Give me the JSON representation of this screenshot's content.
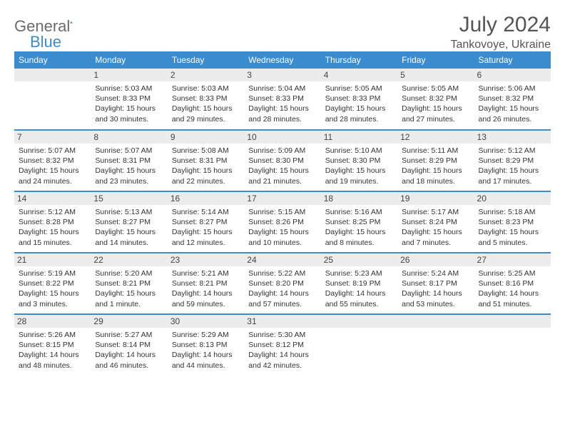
{
  "brand": {
    "prefix": "General",
    "suffix": "Blue"
  },
  "title": "July 2024",
  "location": "Tankovoye, Ukraine",
  "headers": [
    "Sunday",
    "Monday",
    "Tuesday",
    "Wednesday",
    "Thursday",
    "Friday",
    "Saturday"
  ],
  "colors": {
    "accent": "#3b8ccf",
    "text": "#333",
    "muted": "#6b6b6b",
    "bg": "#ffffff",
    "row_bg": "#ececec"
  },
  "weeks": [
    [
      null,
      {
        "n": "1",
        "rise": "5:03 AM",
        "set": "8:33 PM",
        "dl": "15 hours and 30 minutes."
      },
      {
        "n": "2",
        "rise": "5:03 AM",
        "set": "8:33 PM",
        "dl": "15 hours and 29 minutes."
      },
      {
        "n": "3",
        "rise": "5:04 AM",
        "set": "8:33 PM",
        "dl": "15 hours and 28 minutes."
      },
      {
        "n": "4",
        "rise": "5:05 AM",
        "set": "8:33 PM",
        "dl": "15 hours and 28 minutes."
      },
      {
        "n": "5",
        "rise": "5:05 AM",
        "set": "8:32 PM",
        "dl": "15 hours and 27 minutes."
      },
      {
        "n": "6",
        "rise": "5:06 AM",
        "set": "8:32 PM",
        "dl": "15 hours and 26 minutes."
      }
    ],
    [
      {
        "n": "7",
        "rise": "5:07 AM",
        "set": "8:32 PM",
        "dl": "15 hours and 24 minutes."
      },
      {
        "n": "8",
        "rise": "5:07 AM",
        "set": "8:31 PM",
        "dl": "15 hours and 23 minutes."
      },
      {
        "n": "9",
        "rise": "5:08 AM",
        "set": "8:31 PM",
        "dl": "15 hours and 22 minutes."
      },
      {
        "n": "10",
        "rise": "5:09 AM",
        "set": "8:30 PM",
        "dl": "15 hours and 21 minutes."
      },
      {
        "n": "11",
        "rise": "5:10 AM",
        "set": "8:30 PM",
        "dl": "15 hours and 19 minutes."
      },
      {
        "n": "12",
        "rise": "5:11 AM",
        "set": "8:29 PM",
        "dl": "15 hours and 18 minutes."
      },
      {
        "n": "13",
        "rise": "5:12 AM",
        "set": "8:29 PM",
        "dl": "15 hours and 17 minutes."
      }
    ],
    [
      {
        "n": "14",
        "rise": "5:12 AM",
        "set": "8:28 PM",
        "dl": "15 hours and 15 minutes."
      },
      {
        "n": "15",
        "rise": "5:13 AM",
        "set": "8:27 PM",
        "dl": "15 hours and 14 minutes."
      },
      {
        "n": "16",
        "rise": "5:14 AM",
        "set": "8:27 PM",
        "dl": "15 hours and 12 minutes."
      },
      {
        "n": "17",
        "rise": "5:15 AM",
        "set": "8:26 PM",
        "dl": "15 hours and 10 minutes."
      },
      {
        "n": "18",
        "rise": "5:16 AM",
        "set": "8:25 PM",
        "dl": "15 hours and 8 minutes."
      },
      {
        "n": "19",
        "rise": "5:17 AM",
        "set": "8:24 PM",
        "dl": "15 hours and 7 minutes."
      },
      {
        "n": "20",
        "rise": "5:18 AM",
        "set": "8:23 PM",
        "dl": "15 hours and 5 minutes."
      }
    ],
    [
      {
        "n": "21",
        "rise": "5:19 AM",
        "set": "8:22 PM",
        "dl": "15 hours and 3 minutes."
      },
      {
        "n": "22",
        "rise": "5:20 AM",
        "set": "8:21 PM",
        "dl": "15 hours and 1 minute."
      },
      {
        "n": "23",
        "rise": "5:21 AM",
        "set": "8:21 PM",
        "dl": "14 hours and 59 minutes."
      },
      {
        "n": "24",
        "rise": "5:22 AM",
        "set": "8:20 PM",
        "dl": "14 hours and 57 minutes."
      },
      {
        "n": "25",
        "rise": "5:23 AM",
        "set": "8:19 PM",
        "dl": "14 hours and 55 minutes."
      },
      {
        "n": "26",
        "rise": "5:24 AM",
        "set": "8:17 PM",
        "dl": "14 hours and 53 minutes."
      },
      {
        "n": "27",
        "rise": "5:25 AM",
        "set": "8:16 PM",
        "dl": "14 hours and 51 minutes."
      }
    ],
    [
      {
        "n": "28",
        "rise": "5:26 AM",
        "set": "8:15 PM",
        "dl": "14 hours and 48 minutes."
      },
      {
        "n": "29",
        "rise": "5:27 AM",
        "set": "8:14 PM",
        "dl": "14 hours and 46 minutes."
      },
      {
        "n": "30",
        "rise": "5:29 AM",
        "set": "8:13 PM",
        "dl": "14 hours and 44 minutes."
      },
      {
        "n": "31",
        "rise": "5:30 AM",
        "set": "8:12 PM",
        "dl": "14 hours and 42 minutes."
      },
      null,
      null,
      null
    ]
  ],
  "labels": {
    "sunrise": "Sunrise:",
    "sunset": "Sunset:",
    "daylight": "Daylight:"
  }
}
